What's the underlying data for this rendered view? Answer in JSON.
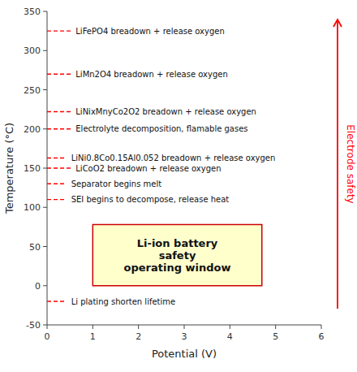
{
  "chart_data": {
    "type": "annotated",
    "x_label": "Potential (V)",
    "y_label": "Temperature (°C)",
    "xlim": [
      0,
      6
    ],
    "ylim": [
      -50,
      350
    ],
    "xticks": [
      0,
      1,
      2,
      3,
      4,
      5,
      6
    ],
    "yticks": [
      -50,
      0,
      50,
      100,
      150,
      200,
      250,
      300,
      350
    ],
    "annotations": [
      {
        "text": "LiFePO4 breadown + release oxygen",
        "y": 325,
        "x_end": 0.52,
        "color": "#ff0000"
      },
      {
        "text": "LiMn2O4 breadown + release oxygen",
        "y": 270,
        "x_end": 0.52,
        "color": "#ff0000"
      },
      {
        "text": "LiNixMnyCo2O2 breadown + release oxygen",
        "y": 222,
        "x_end": 0.52,
        "color": "#ff0000"
      },
      {
        "text": "Electrolyte decomposition, flamable gases",
        "y": 200,
        "x_end": 0.52,
        "color": "#ff0000"
      },
      {
        "text": "LiNi0.8Co0.15Al0.052 breadown + release oxygen",
        "y": 163,
        "x_end": 0.42,
        "color": "#ff0000"
      },
      {
        "text": "LiCoO2 breadown + release oxygen",
        "y": 150,
        "x_end": 0.52,
        "color": "#ff0000"
      },
      {
        "text": "Separator begins melt",
        "y": 130,
        "x_end": 0.42,
        "color": "#ff0000"
      },
      {
        "text": "SEI begins to decompose, release heat",
        "y": 110,
        "x_end": 0.42,
        "color": "#ff0000"
      },
      {
        "text": "Li plating shorten lifetime",
        "y": -20,
        "x_end": 0.42,
        "color": "#ff0000"
      }
    ],
    "box": {
      "x": [
        1.0,
        4.7
      ],
      "y": [
        0,
        78
      ],
      "text": "Li-ion battery\nsafety\noperating window",
      "color": "#ffffcc",
      "edge_color": "#cc0000"
    },
    "arrow": {
      "text": "Electrode safety",
      "color": "#ff0000"
    }
  }
}
